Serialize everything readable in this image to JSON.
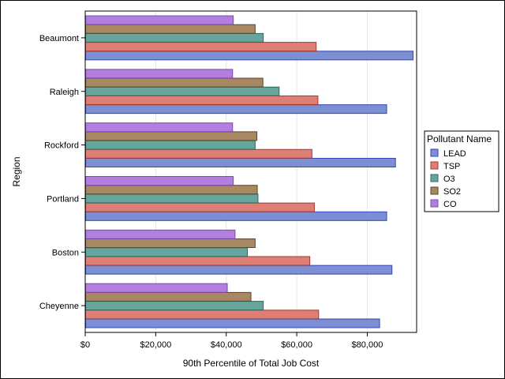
{
  "chart_data": {
    "type": "bar",
    "orientation": "horizontal",
    "title": "",
    "xlabel": "90th Percentile of Total Job Cost",
    "ylabel": "Region",
    "categories": [
      "Beaumont",
      "Raleigh",
      "Rockford",
      "Portland",
      "Boston",
      "Cheyenne"
    ],
    "xlim": [
      0,
      94000
    ],
    "x_ticks": [
      0,
      20000,
      40000,
      60000,
      80000
    ],
    "x_tick_labels": [
      "$0",
      "$20,000",
      "$40,000",
      "$60,000",
      "$80,000"
    ],
    "grid": "vertical",
    "legend_title": "Pollutant Name",
    "legend_position": "right",
    "series": [
      {
        "name": "LEAD",
        "color": "#7b8fd2",
        "stroke": "#3344b8",
        "values": [
          93000,
          85500,
          88000,
          85500,
          87000,
          83500
        ]
      },
      {
        "name": "TSP",
        "color": "#df7e74",
        "stroke": "#a33b32",
        "values": [
          65500,
          66000,
          64300,
          65000,
          63700,
          66200
        ]
      },
      {
        "name": "O3",
        "color": "#66a59d",
        "stroke": "#2d6a62",
        "values": [
          50500,
          55000,
          48200,
          49000,
          46000,
          50500
        ]
      },
      {
        "name": "SO2",
        "color": "#a88862",
        "stroke": "#5e4526",
        "values": [
          48200,
          50400,
          48700,
          48800,
          48200,
          47000
        ]
      },
      {
        "name": "CO",
        "color": "#b37fde",
        "stroke": "#7e4ab3",
        "values": [
          42000,
          41800,
          41800,
          42000,
          42500,
          40300
        ]
      }
    ]
  }
}
